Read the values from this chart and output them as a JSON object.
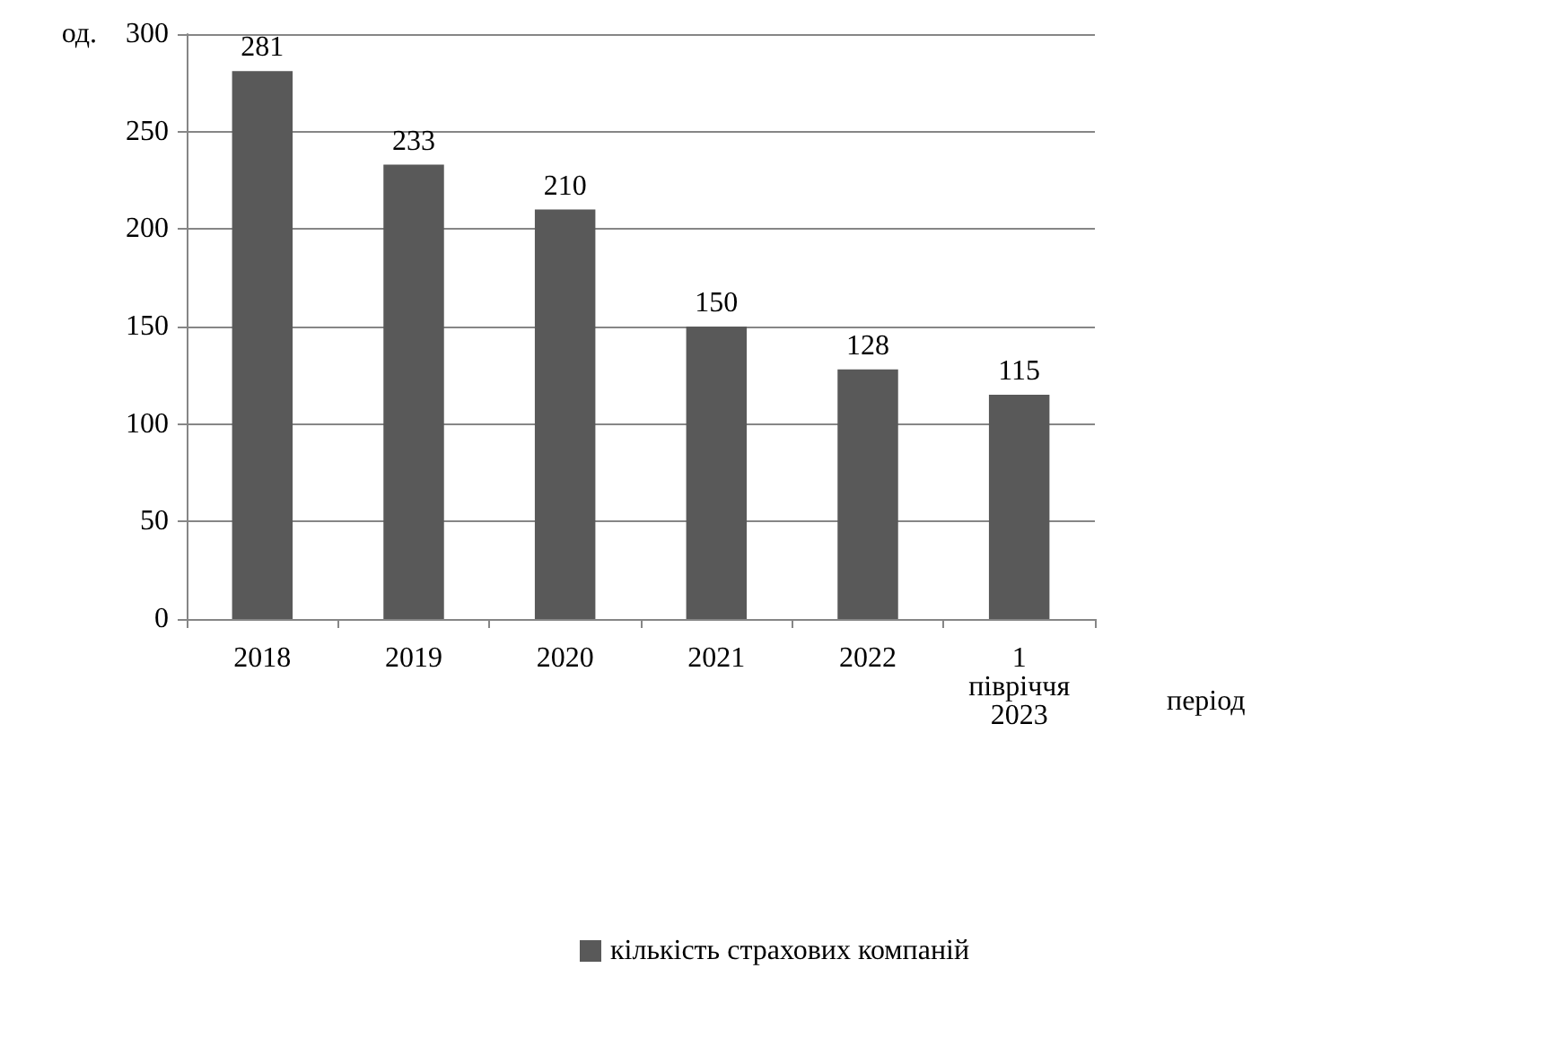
{
  "chart_data": {
    "type": "bar",
    "ylabel": "од.",
    "xlabel": "період",
    "categories": [
      "2018",
      "2019",
      "2020",
      "2021",
      "2022",
      "1 півріччя 2023"
    ],
    "series": [
      {
        "name": "кількість страхових компаній",
        "color": "#595959",
        "values": [
          281,
          233,
          210,
          150,
          128,
          115
        ]
      }
    ],
    "ylim": [
      0,
      300
    ],
    "yticks": [
      0,
      50,
      100,
      150,
      200,
      250,
      300
    ],
    "grid": "y",
    "legend": "bottom",
    "data_labels": true
  }
}
